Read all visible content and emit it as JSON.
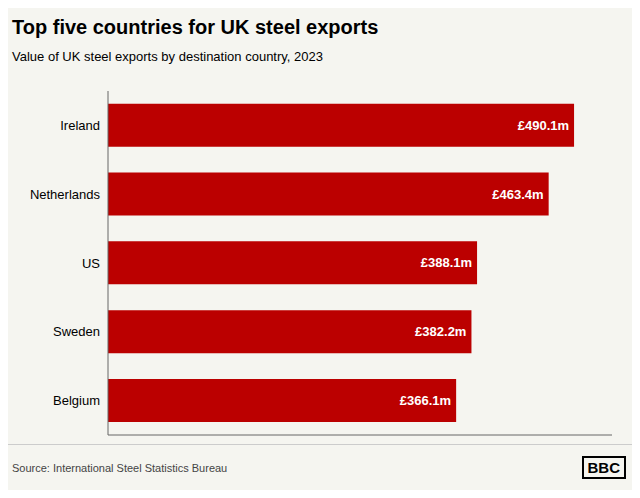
{
  "chart_data": {
    "type": "bar",
    "orientation": "horizontal",
    "title": "Top five countries for UK steel exports",
    "subtitle": "Value of UK steel exports by destination country, 2023",
    "source": "Source: International Steel Statistics Bureau",
    "annotations": [
      "BBC"
    ],
    "categories": [
      "Belgium",
      "Sweden",
      "US",
      "Netherlands",
      "Ireland"
    ],
    "values": [
      366.1,
      382.2,
      388.1,
      463.4,
      490.1
    ],
    "value_labels": [
      "£366.1m",
      "£382.2m",
      "£388.1m",
      "£463.4m",
      "£490.1m"
    ],
    "data_labels": true,
    "color": "#bb0000",
    "xlim": [
      0,
      530
    ],
    "tick_labels": "y",
    "grid": false
  }
}
